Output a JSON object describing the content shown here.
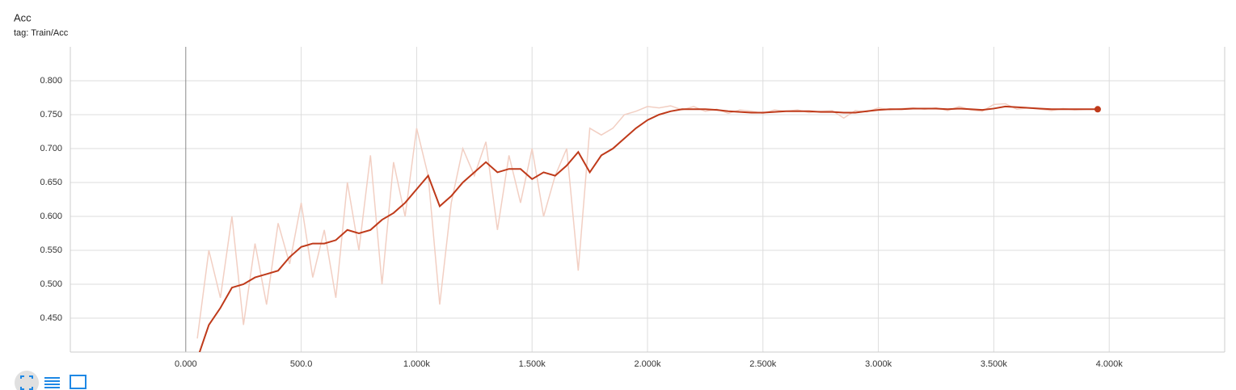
{
  "chart_data": {
    "type": "line",
    "title": "Acc",
    "subtitle": "tag: Train/Acc",
    "x": [
      50,
      100,
      150,
      200,
      250,
      300,
      350,
      400,
      450,
      500,
      550,
      600,
      650,
      700,
      750,
      800,
      850,
      900,
      950,
      1000,
      1050,
      1100,
      1150,
      1200,
      1250,
      1300,
      1350,
      1400,
      1450,
      1500,
      1550,
      1600,
      1650,
      1700,
      1750,
      1800,
      1850,
      1900,
      1950,
      2000,
      2050,
      2100,
      2150,
      2200,
      2250,
      2300,
      2350,
      2400,
      2450,
      2500,
      2550,
      2600,
      2650,
      2700,
      2750,
      2800,
      2850,
      2900,
      2950,
      3000,
      3050,
      3100,
      3150,
      3200,
      3250,
      3300,
      3350,
      3400,
      3450,
      3500,
      3550,
      3600,
      3650,
      3700,
      3750,
      3800,
      3850,
      3900,
      3950
    ],
    "series": [
      {
        "color": "#f2cfc3",
        "values": [
          0.42,
          0.55,
          0.48,
          0.6,
          0.44,
          0.56,
          0.47,
          0.59,
          0.53,
          0.62,
          0.51,
          0.58,
          0.48,
          0.65,
          0.55,
          0.69,
          0.5,
          0.68,
          0.6,
          0.73,
          0.66,
          0.47,
          0.62,
          0.7,
          0.66,
          0.71,
          0.58,
          0.69,
          0.62,
          0.7,
          0.6,
          0.66,
          0.7,
          0.52,
          0.73,
          0.72,
          0.73,
          0.75,
          0.755,
          0.762,
          0.76,
          0.763,
          0.757,
          0.762,
          0.755,
          0.758,
          0.752,
          0.757,
          0.755,
          0.752,
          0.757,
          0.755,
          0.757,
          0.753,
          0.755,
          0.756,
          0.745,
          0.756,
          0.754,
          0.76,
          0.757,
          0.759,
          0.76,
          0.758,
          0.76,
          0.756,
          0.762,
          0.757,
          0.755,
          0.765,
          0.766,
          0.758,
          0.76,
          0.758,
          0.756,
          0.759,
          0.757,
          0.758,
          0.758
        ]
      },
      {
        "color": "#bf3a1a",
        "values": [
          0.39,
          0.44,
          0.465,
          0.495,
          0.5,
          0.51,
          0.515,
          0.52,
          0.54,
          0.555,
          0.56,
          0.56,
          0.565,
          0.58,
          0.575,
          0.58,
          0.595,
          0.605,
          0.62,
          0.64,
          0.66,
          0.615,
          0.63,
          0.65,
          0.665,
          0.68,
          0.665,
          0.67,
          0.67,
          0.655,
          0.665,
          0.66,
          0.675,
          0.695,
          0.665,
          0.69,
          0.7,
          0.715,
          0.73,
          0.742,
          0.75,
          0.755,
          0.758,
          0.758,
          0.758,
          0.757,
          0.755,
          0.754,
          0.753,
          0.753,
          0.754,
          0.755,
          0.755,
          0.755,
          0.754,
          0.754,
          0.753,
          0.753,
          0.755,
          0.757,
          0.758,
          0.758,
          0.759,
          0.759,
          0.759,
          0.758,
          0.759,
          0.758,
          0.757,
          0.759,
          0.762,
          0.761,
          0.76,
          0.759,
          0.758,
          0.758,
          0.758,
          0.758,
          0.758
        ]
      }
    ],
    "xlim": [
      -500,
      4500
    ],
    "ylim": [
      0.4,
      0.85
    ],
    "xticks": [
      {
        "value": 0,
        "label": "0.000"
      },
      {
        "value": 500,
        "label": "500.0"
      },
      {
        "value": 1000,
        "label": "1.000k"
      },
      {
        "value": 1500,
        "label": "1.500k"
      },
      {
        "value": 2000,
        "label": "2.000k"
      },
      {
        "value": 2500,
        "label": "2.500k"
      },
      {
        "value": 3000,
        "label": "3.000k"
      },
      {
        "value": 3500,
        "label": "3.500k"
      },
      {
        "value": 4000,
        "label": "4.000k"
      }
    ],
    "yticks": [
      {
        "value": 0.45,
        "label": "0.450"
      },
      {
        "value": 0.5,
        "label": "0.500"
      },
      {
        "value": 0.55,
        "label": "0.550"
      },
      {
        "value": 0.6,
        "label": "0.600"
      },
      {
        "value": 0.65,
        "label": "0.650"
      },
      {
        "value": 0.7,
        "label": "0.700"
      },
      {
        "value": 0.75,
        "label": "0.750"
      },
      {
        "value": 0.8,
        "label": "0.800"
      }
    ],
    "grid": true
  }
}
